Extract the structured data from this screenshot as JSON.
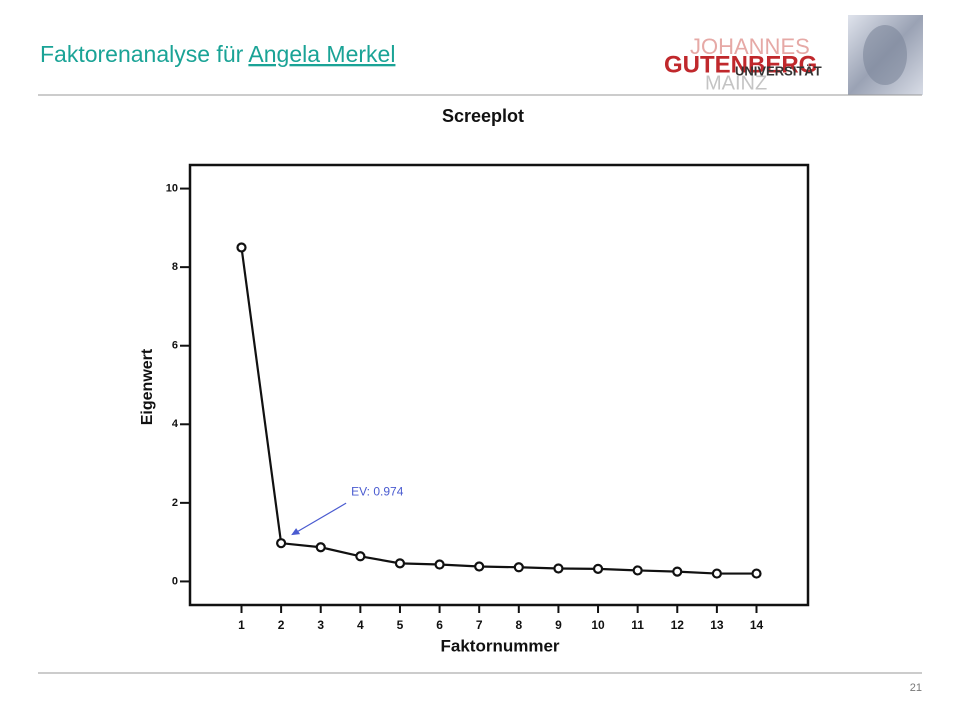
{
  "slide": {
    "title": "Faktorenanalyse für ",
    "title_link": "Angela Merkel",
    "page_number": "21",
    "logo": {
      "line1": "JOHANNES",
      "line2": "GUTENBERG",
      "line3": "UNIVERSITÄT",
      "line4": "MAINZ"
    }
  },
  "chart_data": {
    "type": "line",
    "title": "Screeplot",
    "x_label": "Faktornummer",
    "y_label": "Eigenwert",
    "x": [
      1,
      2,
      3,
      4,
      5,
      6,
      7,
      8,
      9,
      10,
      11,
      12,
      13,
      14
    ],
    "values": [
      8.5,
      0.974,
      0.87,
      0.64,
      0.46,
      0.43,
      0.38,
      0.36,
      0.33,
      0.32,
      0.28,
      0.25,
      0.2,
      0.2
    ],
    "xlim": [
      -0.3,
      15.3
    ],
    "xticks": [
      1,
      2,
      3,
      4,
      5,
      6,
      7,
      8,
      9,
      10,
      11,
      12,
      13,
      14
    ],
    "ylim": [
      -0.6,
      10.6
    ],
    "yticks": [
      0,
      2,
      4,
      6,
      8,
      10
    ],
    "color": "#111111",
    "annotation": {
      "text": "EV: 0.974",
      "x": 2,
      "y": 0.974,
      "color": "#4a5bd0"
    }
  }
}
